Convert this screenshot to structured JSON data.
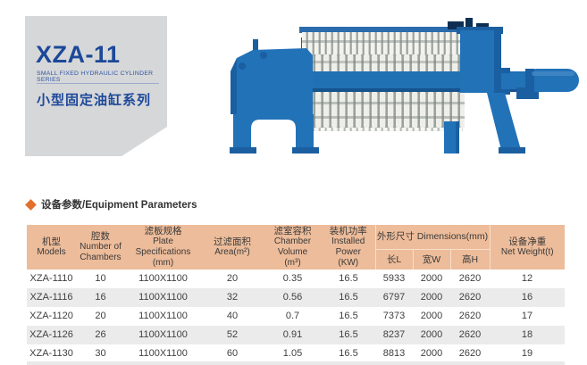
{
  "card": {
    "title": "XZA-11",
    "subtitle": "SMALL FIXED HYDRAULIC CYLINDER SERIES",
    "series_cn": "小型固定油缸系列"
  },
  "section": {
    "title": "设备参数/Equipment Parameters"
  },
  "table": {
    "header": {
      "models": {
        "cn": "机型",
        "en": "Models"
      },
      "chambers": {
        "cn": "腔数",
        "en1": "Number of",
        "en2": "Chambers"
      },
      "plate": {
        "cn": "滤板规格",
        "en": "Plate Specifications",
        "unit": "(mm)"
      },
      "area": {
        "cn": "过滤面积",
        "en": "Area(m²)"
      },
      "volume": {
        "cn": "滤室容积",
        "en": "Chamber Volume",
        "unit": "(m³)"
      },
      "power": {
        "cn": "装机功率",
        "en": "Installed Power",
        "unit": "(KW)"
      },
      "dimensions": {
        "group": "外形尺寸 Dimensions(mm)",
        "length": "长L",
        "width": "宽W",
        "height": "高H"
      },
      "weight": {
        "cn": "设备净重",
        "en": "Net Weight(t)"
      }
    },
    "rows": [
      [
        "XZA-1110",
        "10",
        "1100X1100",
        "20",
        "0.35",
        "16.5",
        "5933",
        "2000",
        "2620",
        "12"
      ],
      [
        "XZA-1116",
        "16",
        "1100X1100",
        "32",
        "0.56",
        "16.5",
        "6797",
        "2000",
        "2620",
        "16"
      ],
      [
        "XZA-1120",
        "20",
        "1100X1100",
        "40",
        "0.7",
        "16.5",
        "7373",
        "2000",
        "2620",
        "17"
      ],
      [
        "XZA-1126",
        "26",
        "1100X1100",
        "52",
        "0.91",
        "16.5",
        "8237",
        "2000",
        "2620",
        "18"
      ],
      [
        "XZA-1130",
        "30",
        "1100X1100",
        "60",
        "1.05",
        "16.5",
        "8813",
        "2000",
        "2620",
        "19"
      ]
    ]
  },
  "colors": {
    "brand_blue": "#1c4899",
    "machine_blue": "#2272b8",
    "machine_blue_dark": "#1a5fa2",
    "card_gray": "#d6d7d9",
    "header_peach": "#edbc9a",
    "diamond_orange": "#e2702d",
    "row_alt_gray": "#ebebeb"
  }
}
